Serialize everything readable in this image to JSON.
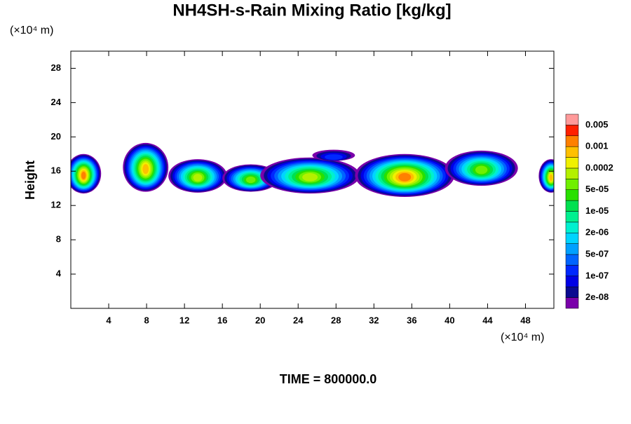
{
  "chart_data": {
    "type": "contour",
    "title": "NH4SH-s-Rain Mixing Ratio [kg/kg]",
    "x_unit_label": "(×10⁴ m)",
    "y_unit_label": "(×10⁴ m)",
    "ylabel": "Height",
    "footer": "TIME = 800000.0",
    "xlim": [
      0,
      51
    ],
    "ylim": [
      0,
      30
    ],
    "xticks": [
      4,
      8,
      12,
      16,
      20,
      24,
      28,
      32,
      36,
      40,
      44,
      48
    ],
    "yticks": [
      4,
      8,
      12,
      16,
      20,
      24,
      28
    ],
    "colorbar": {
      "colors": [
        "#7a00aa",
        "#0a0a90",
        "#0000e6",
        "#0028ff",
        "#0064ff",
        "#00a0ff",
        "#00d4ff",
        "#00f0d0",
        "#00f090",
        "#00e050",
        "#28e000",
        "#70f000",
        "#b4f000",
        "#f0f000",
        "#ffc000",
        "#ff8000",
        "#ff2000",
        "#ff9a9a"
      ],
      "labels": [
        {
          "value": 2e-08,
          "label": "2e-08"
        },
        {
          "value": 1e-07,
          "label": "1e-07"
        },
        {
          "value": 5e-07,
          "label": "5e-07"
        },
        {
          "value": 2e-06,
          "label": "2e-06"
        },
        {
          "value": 1e-05,
          "label": "1e-05"
        },
        {
          "value": 5e-05,
          "label": "5e-05"
        },
        0.0002,
        0.001,
        0.005
      ]
    }
  }
}
